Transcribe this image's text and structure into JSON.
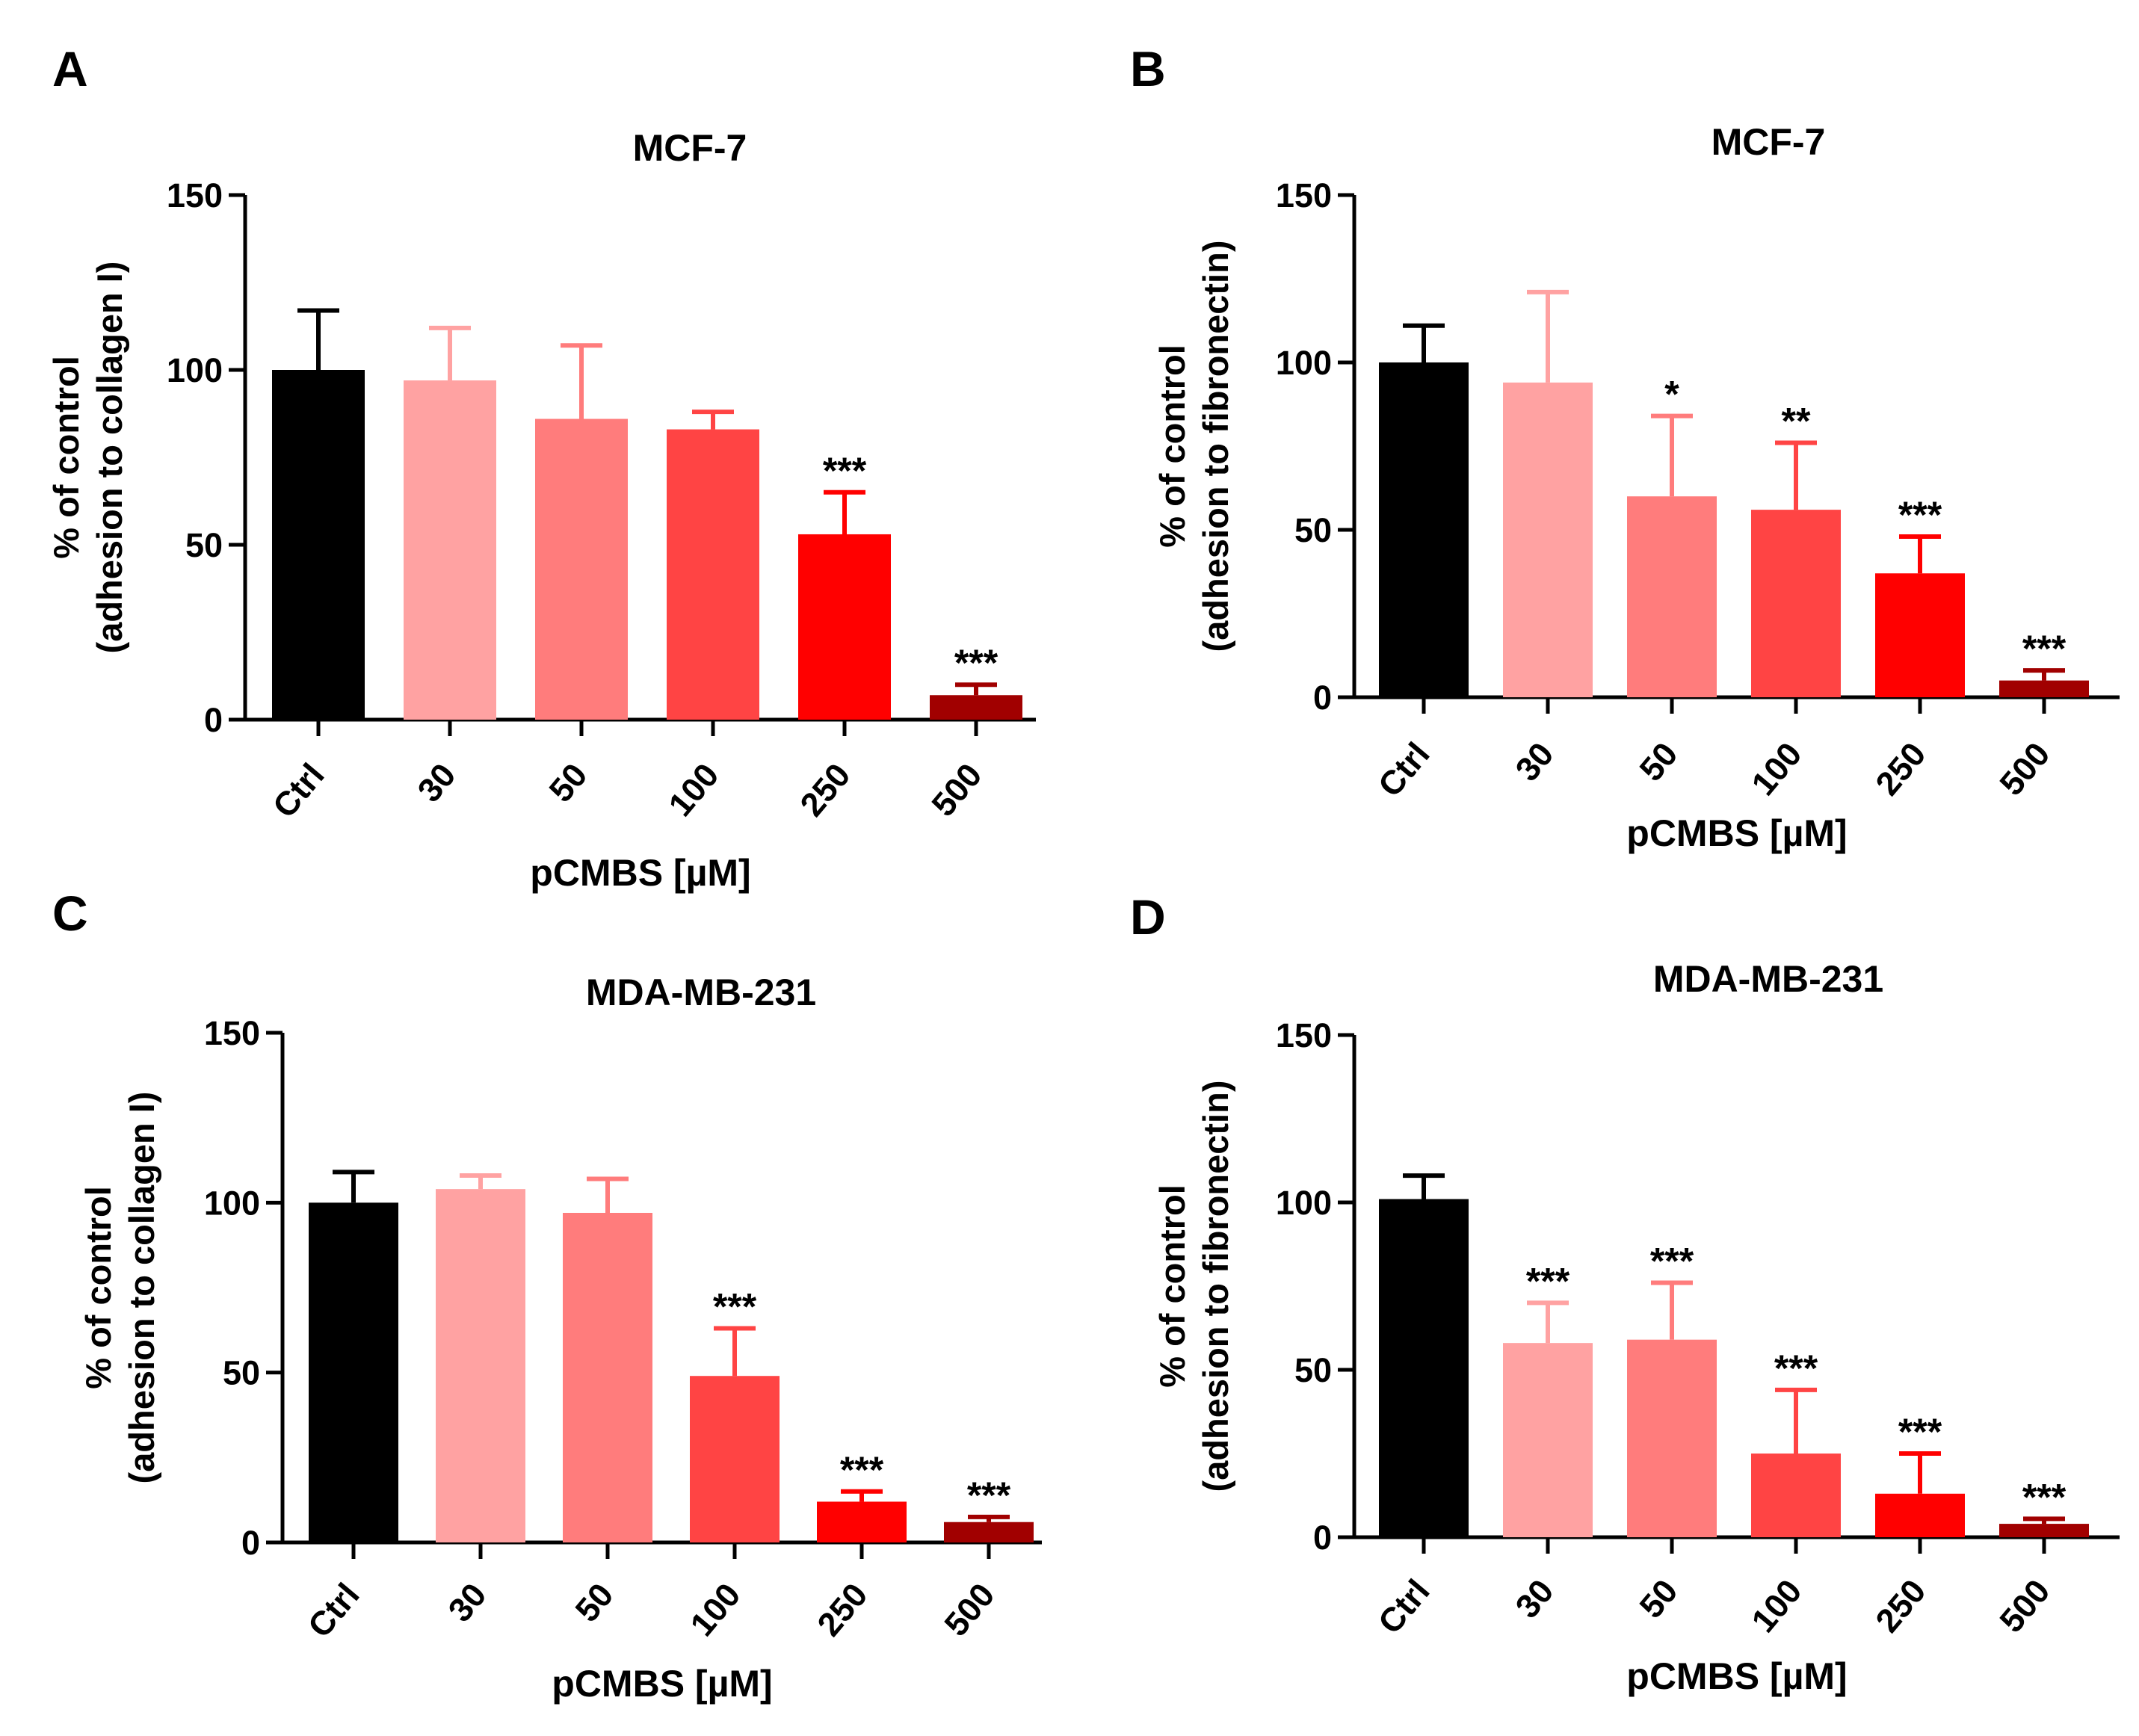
{
  "colors": {
    "axis": "#000000",
    "bars": [
      "#000000",
      "#FFA2A2",
      "#FF7C7C",
      "#FF4444",
      "#FF0000",
      "#A10000"
    ]
  },
  "chart_data": [
    {
      "panel": "A",
      "type": "bar",
      "title": "MCF-7",
      "xlabel": "pCMBS [µM]",
      "ylabel": [
        "% of control",
        "(adhesion to collagen I)"
      ],
      "categories": [
        "Ctrl",
        "30",
        "50",
        "100",
        "250",
        "500"
      ],
      "values": [
        100,
        97,
        86,
        83,
        53,
        7
      ],
      "errors": [
        17,
        15,
        21,
        5,
        12,
        3
      ],
      "significance": [
        "",
        "",
        "",
        "",
        "***",
        "***"
      ],
      "ylim": [
        0,
        150
      ],
      "yticks": [
        0,
        50,
        100,
        150
      ],
      "grid": false
    },
    {
      "panel": "B",
      "type": "bar",
      "title": "MCF-7",
      "xlabel": "pCMBS [µM]",
      "ylabel": [
        "% of control",
        "(adhesion to fibronectin)"
      ],
      "categories": [
        "Ctrl",
        "30",
        "50",
        "100",
        "250",
        "500"
      ],
      "values": [
        100,
        94,
        60,
        56,
        37,
        5
      ],
      "errors": [
        11,
        27,
        24,
        20,
        11,
        3
      ],
      "significance": [
        "",
        "",
        "*",
        "**",
        "***",
        "***"
      ],
      "ylim": [
        0,
        150
      ],
      "yticks": [
        0,
        50,
        100,
        150
      ],
      "grid": false
    },
    {
      "panel": "C",
      "type": "bar",
      "title": "MDA-MB-231",
      "xlabel": "pCMBS [µM]",
      "ylabel": [
        "% of control",
        "(adhesion to collagen I)"
      ],
      "categories": [
        "Ctrl",
        "30",
        "50",
        "100",
        "250",
        "500"
      ],
      "values": [
        100,
        104,
        97,
        49,
        12,
        6
      ],
      "errors": [
        9,
        4,
        10,
        14,
        3,
        1.5
      ],
      "significance": [
        "",
        "",
        "",
        "***",
        "***",
        "***"
      ],
      "ylim": [
        0,
        150
      ],
      "yticks": [
        0,
        50,
        100,
        150
      ],
      "grid": false
    },
    {
      "panel": "D",
      "type": "bar",
      "title": "MDA-MB-231",
      "xlabel": "pCMBS [µM]",
      "ylabel": [
        "% of control",
        "(adhesion to fibronectin)"
      ],
      "categories": [
        "Ctrl",
        "30",
        "50",
        "100",
        "250",
        "500"
      ],
      "values": [
        101,
        58,
        59,
        25,
        13,
        4
      ],
      "errors": [
        7,
        12,
        17,
        19,
        12,
        1.5
      ],
      "significance": [
        "",
        "***",
        "***",
        "***",
        "***",
        "***"
      ],
      "ylim": [
        0,
        150
      ],
      "yticks": [
        0,
        50,
        100,
        150
      ],
      "grid": false
    }
  ]
}
